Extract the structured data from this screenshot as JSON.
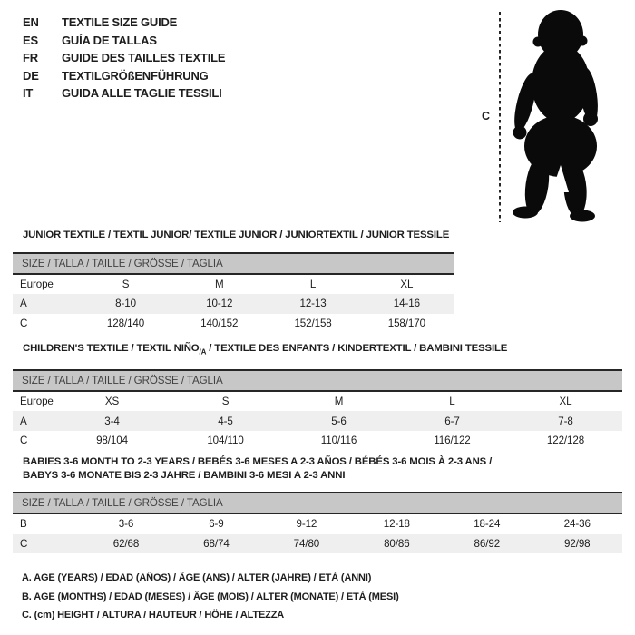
{
  "colors": {
    "text": "#1d1d1d",
    "bar_bg": "#c7c7c7",
    "bar_text": "#414141",
    "alt_row": "#efefef",
    "line": "#262626",
    "silhouette": "#0a0a0a"
  },
  "languages": [
    {
      "code": "EN",
      "label": "TEXTILE SIZE GUIDE"
    },
    {
      "code": "ES",
      "label": "GUÍA DE TALLAS"
    },
    {
      "code": "FR",
      "label": "GUIDE DES TAILLES TEXTILE"
    },
    {
      "code": "DE",
      "label": "TEXTILGRÖßENFÜHRUNG"
    },
    {
      "code": "IT",
      "label": "GUIDA ALLE TAGLIE TESSILI"
    }
  ],
  "figure": {
    "height_label": "C"
  },
  "tables": [
    {
      "title_parts": [
        {
          "text": "JUNIOR TEXTILE / TEXTIL JUNIOR/ TEXTILE JUNIOR / JUNIORTEXTIL / JUNIOR TESSILE"
        }
      ],
      "size_header": "SIZE / TALLA / TAILLE / GRÖSSE / TAGLIA",
      "rows": [
        {
          "cells": [
            "Europe",
            "S",
            "M",
            "L",
            "XL"
          ],
          "shaded": false
        },
        {
          "cells": [
            "A",
            "8-10",
            "10-12",
            "12-13",
            "14-16"
          ],
          "shaded": true
        },
        {
          "cells": [
            "C",
            "128/140",
            "140/152",
            "152/158",
            "158/170"
          ],
          "shaded": false
        }
      ]
    },
    {
      "title_parts": [
        {
          "text": "CHILDREN'S TEXTILE / TEXTIL NIÑO"
        },
        {
          "text": "/A",
          "sub": true
        },
        {
          "text": " / TEXTILE DES ENFANTS / KINDERTEXTIL / BAMBINI TESSILE"
        }
      ],
      "size_header": "SIZE / TALLA / TAILLE / GRÖSSE / TAGLIA",
      "rows": [
        {
          "cells": [
            "Europe",
            "XS",
            "S",
            "M",
            "L",
            "XL"
          ],
          "shaded": false
        },
        {
          "cells": [
            "A",
            "3-4",
            "4-5",
            "5-6",
            "6-7",
            "7-8"
          ],
          "shaded": true
        },
        {
          "cells": [
            "C",
            "98/104",
            "104/110",
            "110/116",
            "116/122",
            "122/128"
          ],
          "shaded": false
        }
      ]
    },
    {
      "title_parts": [
        {
          "text": "BABIES 3-6 MONTH TO 2-3 YEARS / BEBÉS 3-6 MESES A 2-3 AÑOS / BÉBÉS 3-6 MOIS À 2-3 ANS /"
        },
        {
          "text": "BABYS 3-6 MONATE BIS 2-3 JAHRE / BAMBINI 3-6 MESI A 2-3 ANNI",
          "newline": true
        }
      ],
      "size_header": "SIZE / TALLA / TAILLE / GRÖSSE / TAGLIA",
      "rows": [
        {
          "cells": [
            "B",
            "3-6",
            "6-9",
            "9-12",
            "12-18",
            "18-24",
            "24-36"
          ],
          "shaded": false
        },
        {
          "cells": [
            "C",
            "62/68",
            "68/74",
            "74/80",
            "80/86",
            "86/92",
            "92/98"
          ],
          "shaded": true
        }
      ]
    }
  ],
  "footnotes": [
    "A. AGE (YEARS) / EDAD (AÑOS) / ÂGE (ANS) / ALTER (JAHRE) / ETÀ (ANNI)",
    "B. AGE (MONTHS) / EDAD (MESES) / ÂGE (MOIS) / ALTER (MONATE) / ETÀ (MESI)",
    "C. (cm) HEIGHT / ALTURA / HAUTEUR / HÖHE / ALTEZZA"
  ]
}
